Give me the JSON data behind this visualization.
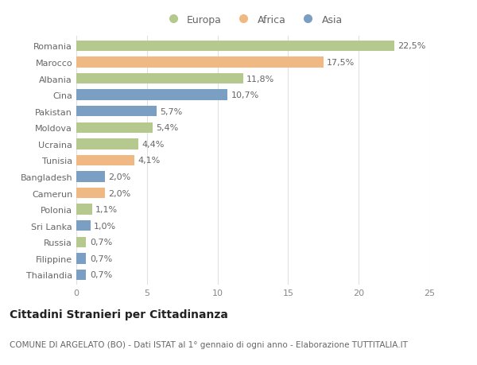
{
  "countries": [
    "Romania",
    "Marocco",
    "Albania",
    "Cina",
    "Pakistan",
    "Moldova",
    "Ucraina",
    "Tunisia",
    "Bangladesh",
    "Camerun",
    "Polonia",
    "Sri Lanka",
    "Russia",
    "Filippine",
    "Thailandia"
  ],
  "values": [
    22.5,
    17.5,
    11.8,
    10.7,
    5.7,
    5.4,
    4.4,
    4.1,
    2.0,
    2.0,
    1.1,
    1.0,
    0.7,
    0.7,
    0.7
  ],
  "labels": [
    "22,5%",
    "17,5%",
    "11,8%",
    "10,7%",
    "5,7%",
    "5,4%",
    "4,4%",
    "4,1%",
    "2,0%",
    "2,0%",
    "1,1%",
    "1,0%",
    "0,7%",
    "0,7%",
    "0,7%"
  ],
  "continents": [
    "Europa",
    "Africa",
    "Europa",
    "Asia",
    "Asia",
    "Europa",
    "Europa",
    "Africa",
    "Asia",
    "Africa",
    "Europa",
    "Asia",
    "Europa",
    "Asia",
    "Asia"
  ],
  "colors": {
    "Europa": "#b5c98e",
    "Africa": "#f0b983",
    "Asia": "#7a9fc2"
  },
  "xlim": [
    0,
    25
  ],
  "xticks": [
    0,
    5,
    10,
    15,
    20,
    25
  ],
  "background_color": "#ffffff",
  "grid_color": "#e0e0e0",
  "title": "Cittadini Stranieri per Cittadinanza",
  "subtitle": "COMUNE DI ARGELATO (BO) - Dati ISTAT al 1° gennaio di ogni anno - Elaborazione TUTTITALIA.IT",
  "bar_height": 0.65,
  "title_fontsize": 10,
  "subtitle_fontsize": 7.5,
  "label_fontsize": 8,
  "tick_fontsize": 8,
  "legend_fontsize": 9
}
